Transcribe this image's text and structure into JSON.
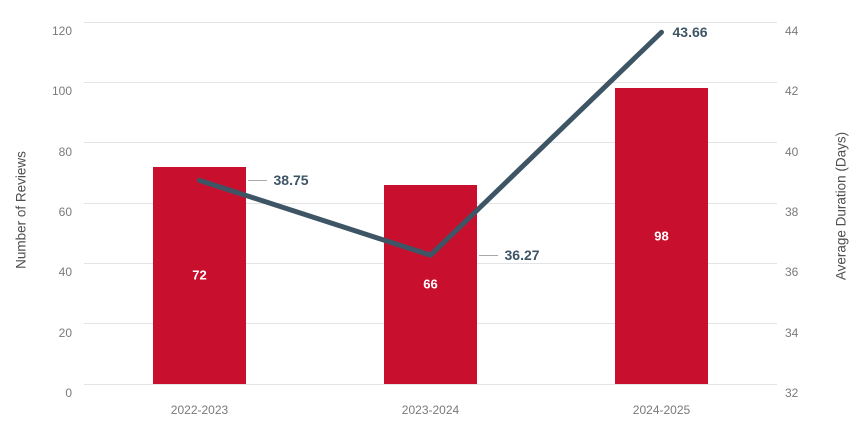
{
  "chart_data": {
    "type": "combo-bar-line",
    "title": "",
    "categories": [
      "2022-2023",
      "2023-2024",
      "2024-2025"
    ],
    "series": [
      {
        "name": "Number of Reviews",
        "type": "bar",
        "axis": "left",
        "values": [
          72,
          66,
          98
        ],
        "data_labels": [
          "72",
          "66",
          "98"
        ],
        "color": "#c8102e",
        "data_label_color": "#ffffff"
      },
      {
        "name": "Average Duration (Days)",
        "type": "line",
        "axis": "right",
        "values": [
          38.75,
          36.27,
          43.66
        ],
        "data_labels": [
          "38.75",
          "36.27",
          "43.66"
        ],
        "color": "#3d5565"
      }
    ],
    "left_axis": {
      "title": "Number of Reviews",
      "min": 0,
      "max": 120,
      "step": 20,
      "ticks": [
        "0",
        "20",
        "40",
        "60",
        "80",
        "100",
        "120"
      ]
    },
    "right_axis": {
      "title": "Average Duration (Days)",
      "min": 32,
      "max": 44,
      "step": 2,
      "ticks": [
        "32",
        "34",
        "36",
        "38",
        "40",
        "42",
        "44"
      ]
    },
    "grid": true,
    "legend_position": "none",
    "background_color": "#ffffff",
    "gridline_color": "#e4e4e4",
    "tick_label_color": "#7a7a7a",
    "leader_line_color": "#a9a9a9"
  }
}
